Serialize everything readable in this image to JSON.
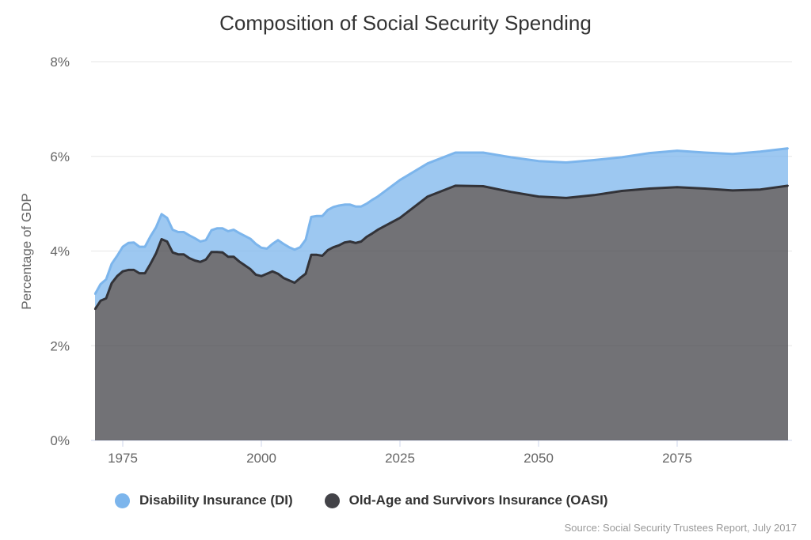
{
  "chart_data": {
    "type": "area",
    "stacked": true,
    "title": "Composition of Social Security Spending",
    "ylabel": "Percentage of GDP",
    "xlabel": "",
    "xlim": [
      1970,
      2095
    ],
    "ylim": [
      0,
      8
    ],
    "x_ticks": [
      "1975",
      "2000",
      "2025",
      "2050",
      "2075"
    ],
    "y_ticks": [
      "0%",
      "2%",
      "4%",
      "6%",
      "8%"
    ],
    "grid": "horizontal",
    "legend": "bottom",
    "x": [
      1970,
      1971,
      1972,
      1973,
      1974,
      1975,
      1976,
      1977,
      1978,
      1979,
      1980,
      1981,
      1982,
      1983,
      1984,
      1985,
      1986,
      1987,
      1988,
      1989,
      1990,
      1991,
      1992,
      1993,
      1994,
      1995,
      1996,
      1997,
      1998,
      1999,
      2000,
      2001,
      2002,
      2003,
      2004,
      2005,
      2006,
      2007,
      2008,
      2009,
      2010,
      2011,
      2012,
      2013,
      2014,
      2015,
      2016,
      2017,
      2018,
      2019,
      2020,
      2021,
      2025,
      2030,
      2035,
      2040,
      2045,
      2050,
      2055,
      2060,
      2065,
      2070,
      2075,
      2080,
      2085,
      2090,
      2095
    ],
    "series": [
      {
        "name": "Old-Age and Survivors Insurance (OASI)",
        "color": "#434348",
        "values": [
          2.77,
          2.95,
          3.0,
          3.32,
          3.47,
          3.57,
          3.6,
          3.6,
          3.53,
          3.53,
          3.73,
          3.95,
          4.25,
          4.2,
          3.97,
          3.93,
          3.93,
          3.85,
          3.8,
          3.77,
          3.82,
          3.98,
          3.98,
          3.97,
          3.88,
          3.88,
          3.78,
          3.7,
          3.62,
          3.5,
          3.47,
          3.52,
          3.57,
          3.52,
          3.43,
          3.38,
          3.33,
          3.43,
          3.52,
          3.92,
          3.92,
          3.9,
          4.02,
          4.08,
          4.12,
          4.18,
          4.2,
          4.17,
          4.2,
          4.3,
          4.37,
          4.45,
          4.7,
          5.15,
          5.38,
          5.37,
          5.25,
          5.15,
          5.12,
          5.18,
          5.27,
          5.32,
          5.35,
          5.32,
          5.28,
          5.3,
          5.38
        ]
      },
      {
        "name": "Disability Insurance (DI)",
        "color": "#7cb5ec",
        "values": [
          0.32,
          0.35,
          0.4,
          0.41,
          0.43,
          0.52,
          0.57,
          0.58,
          0.56,
          0.56,
          0.58,
          0.55,
          0.53,
          0.5,
          0.48,
          0.47,
          0.47,
          0.48,
          0.47,
          0.43,
          0.41,
          0.46,
          0.5,
          0.51,
          0.54,
          0.57,
          0.6,
          0.62,
          0.64,
          0.65,
          0.6,
          0.53,
          0.58,
          0.71,
          0.72,
          0.7,
          0.7,
          0.65,
          0.72,
          0.8,
          0.82,
          0.84,
          0.85,
          0.85,
          0.84,
          0.8,
          0.78,
          0.77,
          0.74,
          0.7,
          0.71,
          0.7,
          0.8,
          0.7,
          0.7,
          0.71,
          0.73,
          0.75,
          0.75,
          0.74,
          0.71,
          0.75,
          0.77,
          0.76,
          0.77,
          0.8,
          0.79
        ]
      }
    ],
    "source": "Source: Social Security Trustees Report, July 2017"
  }
}
